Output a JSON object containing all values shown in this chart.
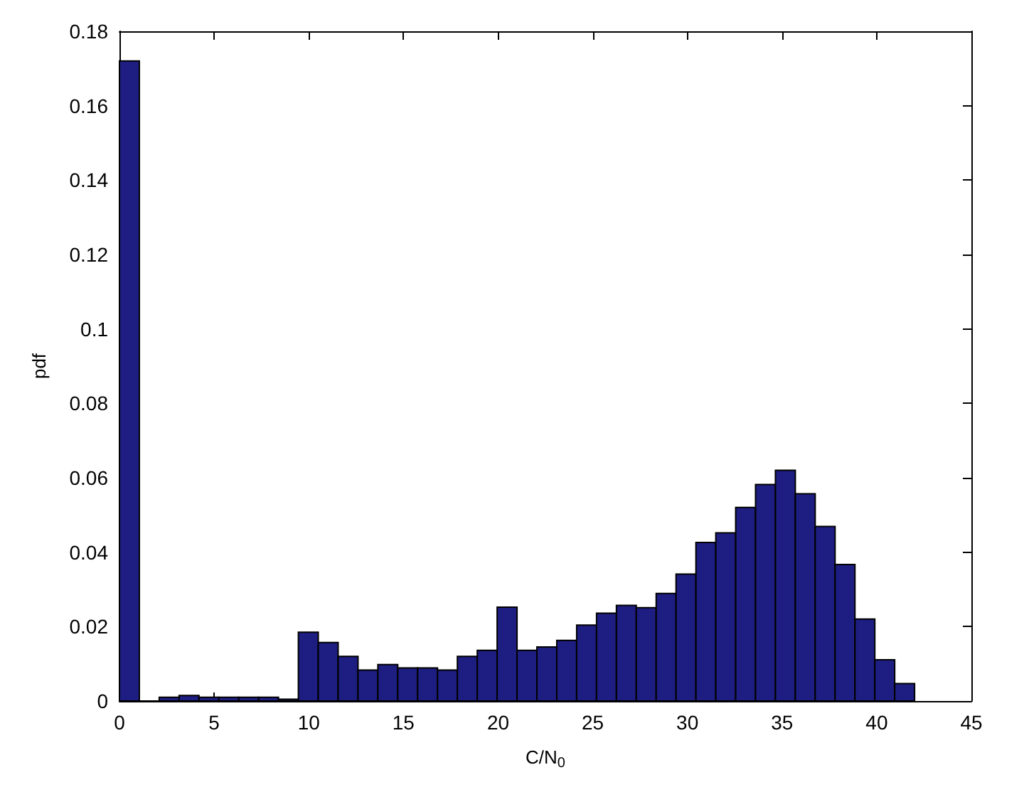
{
  "chart_data": {
    "type": "histogram",
    "xlabel": "C/N$_{0}$",
    "ylabel": "pdf",
    "color": "#1e1e82",
    "bins": [
      0,
      1.05,
      2.1,
      3.15,
      4.2,
      5.25,
      6.3,
      7.35,
      8.4,
      9.45,
      10.5,
      11.55,
      12.6,
      13.65,
      14.7,
      15.75,
      16.8,
      17.85,
      18.9,
      19.95,
      21,
      22.05,
      23.1,
      24.15,
      25.2,
      26.25,
      27.3,
      28.35,
      29.4,
      30.45,
      31.5,
      32.55,
      33.6,
      34.65,
      35.7,
      36.75,
      37.8,
      38.85,
      39.9,
      40.95,
      42
    ],
    "values": [
      0.172,
      0,
      0.001,
      0.0015,
      0.001,
      0.001,
      0.001,
      0.001,
      0.0005,
      0.0185,
      0.0157,
      0.012,
      0.0083,
      0.0098,
      0.0089,
      0.0089,
      0.0083,
      0.012,
      0.0136,
      0.0252,
      0.0136,
      0.0145,
      0.0163,
      0.0204,
      0.0236,
      0.0257,
      0.0251,
      0.0289,
      0.0341,
      0.0426,
      0.0452,
      0.052,
      0.0582,
      0.062,
      0.0557,
      0.0469,
      0.0367,
      0.022,
      0.0111,
      0.0047
    ],
    "xlim": [
      0,
      45
    ],
    "xticks": [
      0,
      5,
      10,
      15,
      20,
      25,
      30,
      35,
      40,
      45
    ],
    "ylim": [
      0,
      0.18
    ],
    "yticks": [
      0,
      0.02,
      0.04,
      0.06,
      0.08,
      0.1,
      0.12,
      0.14,
      0.16,
      0.18
    ]
  }
}
